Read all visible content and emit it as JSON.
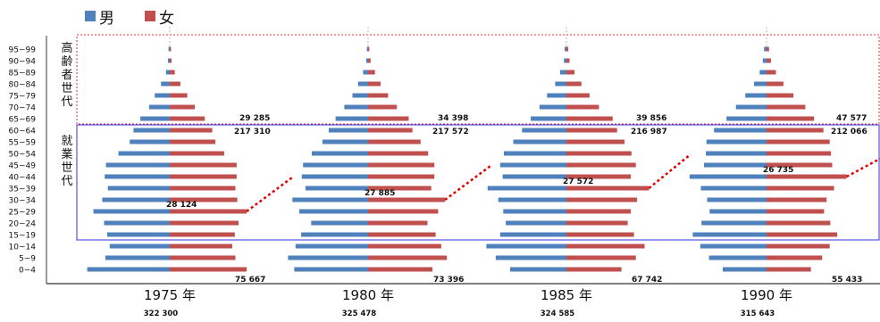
{
  "chart_data": {
    "type": "population-pyramid",
    "legend": [
      {
        "name": "男",
        "color": "#4F81BD"
      },
      {
        "name": "女",
        "color": "#C0504D"
      }
    ],
    "age_groups": [
      "95~99",
      "90~94",
      "85~89",
      "80~84",
      "75~79",
      "70~74",
      "65~69",
      "60~64",
      "55~59",
      "50~54",
      "45~49",
      "40~44",
      "35~39",
      "30~34",
      "25~29",
      "20~24",
      "15~19",
      "10~14",
      "5~9",
      "0~4"
    ],
    "group_labels": [
      {
        "text": "高齢者世代"
      },
      {
        "text": "就業世代"
      }
    ],
    "panels": [
      {
        "year_label": "1975 年",
        "total": "322 300",
        "annotations": {
          "elderly": "29 285",
          "working": "217 310",
          "peak": "28 124",
          "youth": "75 667"
        },
        "male": [
          0.2,
          0.3,
          0.6,
          1.4,
          2.4,
          3.3,
          4.7,
          5.8,
          6.4,
          8.2,
          10.2,
          10.4,
          9.9,
          10.8,
          12.2,
          10.5,
          10.0,
          9.6,
          10.3,
          13.2
        ],
        "female": [
          0.2,
          0.3,
          0.8,
          1.7,
          2.8,
          4.0,
          5.6,
          6.8,
          7.3,
          8.7,
          10.7,
          10.7,
          10.5,
          10.8,
          12.3,
          11.0,
          10.4,
          10.0,
          10.5,
          12.3
        ]
      },
      {
        "year_label": "1980 年",
        "total": "325 478",
        "annotations": {
          "elderly": "34 398",
          "working": "217 572",
          "peak": "27 885",
          "youth": "73 396"
        },
        "male": [
          0.2,
          0.3,
          0.8,
          1.6,
          2.5,
          3.8,
          5.2,
          6.3,
          7.3,
          9.0,
          10.4,
          10.6,
          10.0,
          12.1,
          11.0,
          9.1,
          10.7,
          11.6,
          12.8,
          11.8
        ],
        "female": [
          0.2,
          0.4,
          1.1,
          2.0,
          3.2,
          4.6,
          6.5,
          7.1,
          8.4,
          9.6,
          10.6,
          10.6,
          10.1,
          12.3,
          11.2,
          9.5,
          10.8,
          11.7,
          12.6,
          10.3
        ]
      },
      {
        "year_label": "1985 年",
        "total": "324 585",
        "annotations": {
          "elderly": "39 856",
          "working": "216 987",
          "peak": "27 572",
          "youth": "67 742"
        },
        "male": [
          0.3,
          0.4,
          1.0,
          1.8,
          3.1,
          4.3,
          5.7,
          7.1,
          8.5,
          10.0,
          10.6,
          10.2,
          12.6,
          10.9,
          10.1,
          9.7,
          10.6,
          12.8,
          11.3,
          9.0
        ],
        "female": [
          0.3,
          0.5,
          1.3,
          2.4,
          3.7,
          5.2,
          7.4,
          8.1,
          9.3,
          10.4,
          11.1,
          10.3,
          13.2,
          11.3,
          10.3,
          9.8,
          10.8,
          12.5,
          11.1,
          8.8
        ]
      },
      {
        "year_label": "1990 年",
        "total": "315 643",
        "annotations": {
          "elderly": "47 577",
          "working": "212 066",
          "peak": "26 735",
          "youth": "55 433"
        },
        "male": [
          0.4,
          0.6,
          1.1,
          2.0,
          3.4,
          4.9,
          6.4,
          8.4,
          9.6,
          9.7,
          10.0,
          12.3,
          10.5,
          9.5,
          9.1,
          10.4,
          11.8,
          10.6,
          9.2,
          7.0
        ],
        "female": [
          0.4,
          0.7,
          1.5,
          2.7,
          4.3,
          6.2,
          7.6,
          9.1,
          10.1,
          10.3,
          10.5,
          12.8,
          10.8,
          9.6,
          9.2,
          10.2,
          11.3,
          10.1,
          8.9,
          7.1
        ]
      }
    ]
  }
}
